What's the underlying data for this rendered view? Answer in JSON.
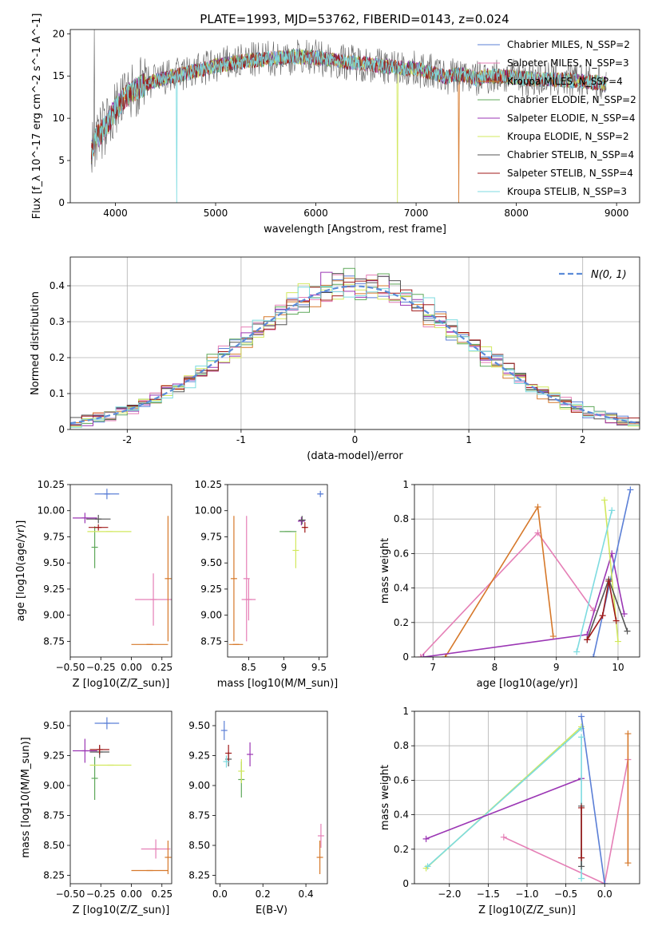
{
  "figure": {
    "title": "PLATE=1993, MJD=53762, FIBERID=0143, z=0.024"
  },
  "colors": {
    "chabrier_miles": "#5b7fd6",
    "salpeter_miles": "#e57fb6",
    "kroupa_miles": "#d6782a",
    "chabrier_elodie": "#5fa85a",
    "salpeter_elodie": "#9b36b4",
    "kroupa_elodie": "#d2e85e",
    "chabrier_stelib": "#555555",
    "salpeter_stelib": "#a01a1a",
    "kroupa_stelib": "#7ddbe0",
    "normal_curve": "#5b8bd8",
    "grid": "#b0b0b0"
  },
  "chart_data": [
    {
      "id": "spectrum",
      "type": "line",
      "xlabel": "wavelength [Angstrom, rest frame]",
      "ylabel": "Flux [f_λ 10^-17 erg cm^-2 s^-1 A^-1]",
      "xlim": [
        3550,
        9230
      ],
      "ylim": [
        0,
        20.5
      ],
      "xticks": [
        4000,
        5000,
        6000,
        7000,
        8000,
        9000
      ],
      "yticks": [
        0,
        5,
        10,
        15,
        20
      ],
      "legend_position": "top-right",
      "series": [
        {
          "name": "Chabrier MILES, N_SSP=2",
          "color_key": "chabrier_miles"
        },
        {
          "name": "Salpeter MILES, N_SSP=3",
          "color_key": "salpeter_miles"
        },
        {
          "name": "Kroupa MILES, N_SSP=4",
          "color_key": "kroupa_miles"
        },
        {
          "name": "Chabrier ELODIE, N_SSP=2",
          "color_key": "chabrier_elodie"
        },
        {
          "name": "Salpeter ELODIE, N_SSP=4",
          "color_key": "salpeter_elodie"
        },
        {
          "name": "Kroupa ELODIE, N_SSP=2",
          "color_key": "kroupa_elodie"
        },
        {
          "name": "Chabrier STELIB, N_SSP=4",
          "color_key": "chabrier_stelib"
        },
        {
          "name": "Salpeter STELIB, N_SSP=4",
          "color_key": "salpeter_stelib"
        },
        {
          "name": "Kroupa STELIB, N_SSP=3",
          "color_key": "kroupa_stelib"
        }
      ],
      "continuum": {
        "wavelength": [
          3760,
          3800,
          3900,
          4000,
          4100,
          4200,
          4400,
          4600,
          4800,
          5000,
          5200,
          5400,
          5600,
          5800,
          6000,
          6200,
          6400,
          6600,
          6800,
          7000,
          7100,
          7200,
          7300,
          7400,
          7500,
          7600,
          7700,
          7800,
          8000,
          8200,
          8400,
          8600,
          8800,
          8900
        ],
        "flux": [
          6.0,
          7.5,
          9.0,
          11.0,
          12.5,
          13.5,
          14.5,
          15.0,
          15.6,
          16.2,
          16.6,
          16.9,
          17.1,
          17.3,
          17.2,
          16.8,
          16.6,
          16.3,
          16.0,
          15.8,
          15.6,
          15.3,
          14.8,
          15.2,
          15.1,
          14.6,
          15.0,
          15.0,
          14.8,
          14.6,
          14.6,
          14.4,
          14.2,
          14.0
        ]
      },
      "spikes": [
        {
          "wavelength": 3790,
          "color_key": "chabrier_stelib",
          "flux": 20.5
        },
        {
          "wavelength": 4610,
          "color_key": "kroupa_stelib",
          "flux": 0
        },
        {
          "wavelength": 6815,
          "color_key": "kroupa_elodie",
          "flux": 0
        },
        {
          "wavelength": 7425,
          "color_key": "kroupa_miles",
          "flux": 0
        }
      ]
    },
    {
      "id": "residuals",
      "type": "line",
      "xlabel": "(data-model)/error",
      "ylabel": "Normed distribution",
      "xlim": [
        -2.5,
        2.5
      ],
      "ylim": [
        0,
        0.48
      ],
      "xticks": [
        -2,
        -1,
        0,
        1,
        2
      ],
      "yticks": [
        0.0,
        0.1,
        0.2,
        0.3,
        0.4
      ],
      "legend_position": "top-right",
      "bin_width": 0.1,
      "legend_label": "N(0, 1)",
      "histogram_color_keys": [
        "chabrier_miles",
        "salpeter_miles",
        "kroupa_miles",
        "chabrier_elodie",
        "salpeter_elodie",
        "kroupa_elodie",
        "chabrier_stelib",
        "salpeter_stelib",
        "kroupa_stelib"
      ]
    },
    {
      "id": "age_vs_z",
      "type": "scatter",
      "xlabel": "Z [log10(Z/Z_sun)]",
      "ylabel": "age  [log10(age/yr)]",
      "xlim": [
        -0.5,
        0.33
      ],
      "ylim": [
        8.6,
        10.25
      ],
      "xticks": [
        -0.5,
        -0.25,
        0.0,
        0.25
      ],
      "xticklabels": [
        "−0.50",
        "−0.25",
        "0.00",
        "0.25"
      ],
      "yticks": [
        8.75,
        9.0,
        9.25,
        9.5,
        9.75,
        10.0,
        10.25
      ],
      "yticklabels": [
        "8.75",
        "9.00",
        "9.25",
        "9.50",
        "9.75",
        "10.00",
        "10.25"
      ],
      "points": [
        {
          "color_key": "chabrier_miles",
          "x": -0.2,
          "y": 10.16,
          "xerr": 0.1,
          "yerr": 0.05
        },
        {
          "color_key": "salpeter_miles",
          "x": 0.18,
          "y": 9.15,
          "xerr": 0.15,
          "yerr": 0.25
        },
        {
          "color_key": "kroupa_miles",
          "x": 0.15,
          "y": 8.72,
          "xerr": 0.15,
          "yerr": 0.0
        },
        {
          "color_key": "kroupa_miles",
          "x": 0.3,
          "y": 9.35,
          "xerr": 0.0,
          "yerr": 0.6
        },
        {
          "color_key": "chabrier_elodie",
          "x": -0.3,
          "y": 9.65,
          "xerr": 0.0,
          "yerr": 0.2
        },
        {
          "color_key": "kroupa_elodie",
          "x": -0.18,
          "y": 9.8,
          "xerr": 0.18,
          "yerr": 0.0
        },
        {
          "color_key": "salpeter_elodie",
          "x": -0.38,
          "y": 9.93,
          "xerr": 0.1,
          "yerr": 0.05
        },
        {
          "color_key": "chabrier_stelib",
          "x": -0.27,
          "y": 9.92,
          "xerr": 0.1,
          "yerr": 0.04
        },
        {
          "color_key": "salpeter_stelib",
          "x": -0.27,
          "y": 9.84,
          "xerr": 0.08,
          "yerr": 0.03
        }
      ]
    },
    {
      "id": "age_vs_mass",
      "type": "scatter",
      "xlabel": "mass [log10(M/M_sun)]",
      "ylabel": "",
      "xlim": [
        8.2,
        9.62
      ],
      "ylim": [
        8.6,
        10.25
      ],
      "xticks": [
        8.5,
        9.0,
        9.5
      ],
      "yticks": [
        8.75,
        9.0,
        9.25,
        9.5,
        9.75,
        10.0,
        10.25
      ],
      "yticklabels": [
        "8.75",
        "9.00",
        "9.25",
        "9.50",
        "9.75",
        "10.00",
        "10.25"
      ],
      "points": [
        {
          "color_key": "chabrier_miles",
          "x": 9.52,
          "y": 10.16,
          "xerr": 0.03,
          "yerr": 0.03
        },
        {
          "color_key": "salpeter_miles",
          "x": 8.5,
          "y": 9.15,
          "xerr": 0.1,
          "yerr": 0.2
        },
        {
          "color_key": "salpeter_miles",
          "x": 8.47,
          "y": 9.35,
          "xerr": 0.0,
          "yerr": 0.6
        },
        {
          "color_key": "kroupa_miles",
          "x": 8.32,
          "y": 8.72,
          "xerr": 0.1,
          "yerr": 0.0
        },
        {
          "color_key": "kroupa_miles",
          "x": 8.29,
          "y": 9.35,
          "xerr": 0.0,
          "yerr": 0.6
        },
        {
          "color_key": "chabrier_elodie",
          "x": 9.06,
          "y": 9.8,
          "xerr": 0.12,
          "yerr": 0.0
        },
        {
          "color_key": "kroupa_elodie",
          "x": 9.17,
          "y": 9.62,
          "xerr": 0.0,
          "yerr": 0.17
        },
        {
          "color_key": "salpeter_elodie",
          "x": 9.25,
          "y": 9.9,
          "xerr": 0.05,
          "yerr": 0.04
        },
        {
          "color_key": "chabrier_stelib",
          "x": 9.26,
          "y": 9.91,
          "xerr": 0.05,
          "yerr": 0.04
        },
        {
          "color_key": "salpeter_stelib",
          "x": 9.3,
          "y": 9.84,
          "xerr": 0.02,
          "yerr": 0.05
        }
      ]
    },
    {
      "id": "mass_weight_vs_age",
      "type": "line",
      "xlabel": "age  [log10(age/yr)]",
      "ylabel": "mass weight",
      "xlim": [
        6.7,
        10.35
      ],
      "ylim": [
        0,
        1.0
      ],
      "xticks": [
        7,
        8,
        9,
        10
      ],
      "yticks": [
        0.0,
        0.2,
        0.4,
        0.6,
        0.8,
        1.0
      ],
      "series": [
        {
          "color_key": "salpeter_miles",
          "x": [
            6.8,
            8.7,
            9.6
          ],
          "y": [
            0.0,
            0.72,
            0.27
          ]
        },
        {
          "color_key": "kroupa_miles",
          "x": [
            7.2,
            8.7,
            8.95
          ],
          "y": [
            0.0,
            0.87,
            0.12
          ]
        },
        {
          "color_key": "salpeter_elodie",
          "x": [
            6.85,
            9.5,
            9.9,
            10.1
          ],
          "y": [
            0.0,
            0.13,
            0.6,
            0.25
          ]
        },
        {
          "color_key": "chabrier_miles",
          "x": [
            9.6,
            10.2
          ],
          "y": [
            0.0,
            0.97
          ]
        },
        {
          "color_key": "kroupa_elodie",
          "x": [
            9.78,
            10.0
          ],
          "y": [
            0.91,
            0.09
          ]
        },
        {
          "color_key": "kroupa_stelib",
          "x": [
            9.33,
            9.9
          ],
          "y": [
            0.03,
            0.85
          ]
        },
        {
          "color_key": "chabrier_stelib",
          "x": [
            9.5,
            9.85,
            10.15
          ],
          "y": [
            0.1,
            0.45,
            0.15
          ]
        },
        {
          "color_key": "salpeter_stelib",
          "x": [
            9.5,
            9.75,
            9.85,
            9.97
          ],
          "y": [
            0.1,
            0.24,
            0.44,
            0.21
          ]
        }
      ]
    },
    {
      "id": "mass_vs_z",
      "type": "scatter",
      "xlabel": "Z [log10(Z/Z_sun)]",
      "ylabel": "mass [log10(M/M_sun)]",
      "xlim": [
        -0.5,
        0.33
      ],
      "ylim": [
        8.18,
        9.62
      ],
      "xticks": [
        -0.5,
        -0.25,
        0.0,
        0.25
      ],
      "xticklabels": [
        "−0.50",
        "−0.25",
        "0.00",
        "0.25"
      ],
      "yticks": [
        8.25,
        8.5,
        8.75,
        9.0,
        9.25,
        9.5
      ],
      "yticklabels": [
        "8.25",
        "8.50",
        "8.75",
        "9.00",
        "9.25",
        "9.50"
      ],
      "points": [
        {
          "color_key": "chabrier_miles",
          "x": -0.2,
          "y": 9.52,
          "xerr": 0.1,
          "yerr": 0.05
        },
        {
          "color_key": "salpeter_miles",
          "x": 0.2,
          "y": 8.47,
          "xerr": 0.12,
          "yerr": 0.08
        },
        {
          "color_key": "kroupa_miles",
          "x": 0.15,
          "y": 8.29,
          "xerr": 0.15,
          "yerr": 0.0
        },
        {
          "color_key": "kroupa_miles",
          "x": 0.3,
          "y": 8.4,
          "xerr": 0.0,
          "yerr": 0.14
        },
        {
          "color_key": "chabrier_elodie",
          "x": -0.3,
          "y": 9.06,
          "xerr": 0.0,
          "yerr": 0.18
        },
        {
          "color_key": "kroupa_elodie",
          "x": -0.17,
          "y": 9.17,
          "xerr": 0.17,
          "yerr": 0.0
        },
        {
          "color_key": "salpeter_elodie",
          "x": -0.38,
          "y": 9.29,
          "xerr": 0.1,
          "yerr": 0.1
        },
        {
          "color_key": "chabrier_stelib",
          "x": -0.26,
          "y": 9.28,
          "xerr": 0.08,
          "yerr": 0.05
        },
        {
          "color_key": "salpeter_stelib",
          "x": -0.26,
          "y": 9.3,
          "xerr": 0.08,
          "yerr": 0.04
        }
      ]
    },
    {
      "id": "mass_vs_ebv",
      "type": "scatter",
      "xlabel": "E(B-V)",
      "ylabel": "",
      "xlim": [
        -0.02,
        0.5
      ],
      "ylim": [
        8.18,
        9.62
      ],
      "xticks": [
        0.0,
        0.2,
        0.4
      ],
      "xticklabels": [
        "0.0",
        "0.2",
        "0.4"
      ],
      "yticks": [
        8.25,
        8.5,
        8.75,
        9.0,
        9.25,
        9.5
      ],
      "yticklabels": [
        "8.25",
        "8.50",
        "8.75",
        "9.00",
        "9.25",
        "9.50"
      ],
      "points": [
        {
          "color_key": "chabrier_miles",
          "x": 0.02,
          "y": 9.46,
          "xerr": 0.0,
          "yerr": 0.08
        },
        {
          "color_key": "salpeter_miles",
          "x": 0.47,
          "y": 8.58,
          "xerr": 0.0,
          "yerr": 0.1
        },
        {
          "color_key": "kroupa_miles",
          "x": 0.465,
          "y": 8.4,
          "xerr": 0.0,
          "yerr": 0.14
        },
        {
          "color_key": "chabrier_elodie",
          "x": 0.1,
          "y": 9.05,
          "xerr": 0.0,
          "yerr": 0.15
        },
        {
          "color_key": "kroupa_elodie",
          "x": 0.1,
          "y": 9.12,
          "xerr": 0.0,
          "yerr": 0.1
        },
        {
          "color_key": "salpeter_elodie",
          "x": 0.14,
          "y": 9.26,
          "xerr": 0.0,
          "yerr": 0.1
        },
        {
          "color_key": "chabrier_stelib",
          "x": 0.04,
          "y": 9.22,
          "xerr": 0.0,
          "yerr": 0.06
        },
        {
          "color_key": "salpeter_stelib",
          "x": 0.04,
          "y": 9.27,
          "xerr": 0.0,
          "yerr": 0.07
        },
        {
          "color_key": "kroupa_stelib",
          "x": 0.03,
          "y": 9.2,
          "xerr": 0.0,
          "yerr": 0.05
        }
      ]
    },
    {
      "id": "mass_weight_vs_z",
      "type": "line",
      "xlabel": "Z [log10(Z/Z_sun)]",
      "ylabel": "mass weight",
      "xlim": [
        -2.45,
        0.45
      ],
      "ylim": [
        0,
        1.0
      ],
      "xticks": [
        -2.0,
        -1.5,
        -1.0,
        -0.5,
        0.0
      ],
      "xticklabels": [
        "−2.0",
        "−1.5",
        "−1.0",
        "−0.5",
        "0.0"
      ],
      "yticks": [
        0.0,
        0.2,
        0.4,
        0.6,
        0.8,
        1.0
      ],
      "series": [
        {
          "color_key": "kroupa_elodie",
          "x": [
            -2.3,
            -0.3
          ],
          "y": [
            0.09,
            0.91
          ]
        },
        {
          "color_key": "kroupa_stelib",
          "x": [
            -2.28,
            -0.3
          ],
          "y": [
            0.1,
            0.9
          ]
        },
        {
          "color_key": "salpeter_elodie",
          "x": [
            -2.3,
            -0.3
          ],
          "y": [
            0.26,
            0.61
          ]
        },
        {
          "color_key": "salpeter_miles",
          "x": [
            -1.3,
            0.0,
            0.3
          ],
          "y": [
            0.27,
            0.0,
            0.72
          ]
        },
        {
          "color_key": "chabrier_miles",
          "x": [
            -0.3,
            0.0
          ],
          "y": [
            0.97,
            0.0
          ]
        },
        {
          "color_key": "kroupa_miles",
          "x": [
            0.3,
            0.3
          ],
          "y": [
            0.87,
            0.12
          ]
        },
        {
          "color_key": "kroupa_stelib",
          "x": [
            -0.3,
            -0.3
          ],
          "y": [
            0.03,
            0.85
          ]
        },
        {
          "color_key": "chabrier_stelib",
          "x": [
            -0.3,
            -0.3
          ],
          "y": [
            0.1,
            0.45
          ]
        },
        {
          "color_key": "salpeter_stelib",
          "x": [
            -0.3,
            -0.3
          ],
          "y": [
            0.15,
            0.44
          ]
        }
      ]
    }
  ]
}
